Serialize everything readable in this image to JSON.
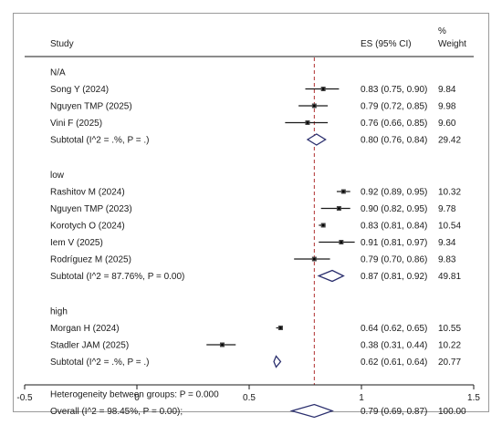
{
  "chart_data": {
    "type": "forest",
    "headers": {
      "study": "Study",
      "es": "ES (95% CI)",
      "weight_top": "%",
      "weight": "Weight"
    },
    "reference_line": 0.79,
    "xlim": [
      -0.5,
      1.5
    ],
    "xticks": [
      -0.5,
      0,
      0.5,
      1,
      1.5
    ],
    "xtick_labels": [
      "-0.5",
      "0",
      "0.5",
      "1",
      "1.5"
    ],
    "groups": [
      {
        "name": "N/A",
        "studies": [
          {
            "label": "Song Y (2024)",
            "es": 0.83,
            "lo": 0.75,
            "hi": 0.9,
            "ci_text": "0.83 (0.75, 0.90)",
            "weight": "9.84"
          },
          {
            "label": "Nguyen TMP (2025)",
            "es": 0.79,
            "lo": 0.72,
            "hi": 0.85,
            "ci_text": "0.79 (0.72, 0.85)",
            "weight": "9.98"
          },
          {
            "label": "Vini F (2025)",
            "es": 0.76,
            "lo": 0.66,
            "hi": 0.85,
            "ci_text": "0.76 (0.66, 0.85)",
            "weight": "9.60"
          }
        ],
        "subtotal": {
          "label": "Subtotal  (I^2 = .%,  P = .)",
          "es": 0.8,
          "lo": 0.76,
          "hi": 0.84,
          "ci_text": "0.80 (0.76, 0.84)",
          "weight": "29.42"
        }
      },
      {
        "name": "low",
        "studies": [
          {
            "label": "Rashitov M (2024)",
            "es": 0.92,
            "lo": 0.89,
            "hi": 0.95,
            "ci_text": "0.92 (0.89, 0.95)",
            "weight": "10.32"
          },
          {
            "label": "Nguyen TMP (2023)",
            "es": 0.9,
            "lo": 0.82,
            "hi": 0.95,
            "ci_text": "0.90 (0.82, 0.95)",
            "weight": "9.78"
          },
          {
            "label": "Korotych O (2024)",
            "es": 0.83,
            "lo": 0.81,
            "hi": 0.84,
            "ci_text": "0.83 (0.81, 0.84)",
            "weight": "10.54"
          },
          {
            "label": "Iem V (2025)",
            "es": 0.91,
            "lo": 0.81,
            "hi": 0.97,
            "ci_text": "0.91 (0.81, 0.97)",
            "weight": "9.34"
          },
          {
            "label": "Rodríguez M (2025)",
            "es": 0.79,
            "lo": 0.7,
            "hi": 0.86,
            "ci_text": "0.79 (0.70, 0.86)",
            "weight": "9.83"
          }
        ],
        "subtotal": {
          "label": "Subtotal  (I^2 = 87.76%,  P = 0.00)",
          "es": 0.87,
          "lo": 0.81,
          "hi": 0.92,
          "ci_text": "0.87 (0.81, 0.92)",
          "weight": "49.81"
        }
      },
      {
        "name": "high",
        "studies": [
          {
            "label": "Morgan H (2024)",
            "es": 0.64,
            "lo": 0.62,
            "hi": 0.65,
            "ci_text": "0.64 (0.62, 0.65)",
            "weight": "10.55"
          },
          {
            "label": "Stadler JAM (2025)",
            "es": 0.38,
            "lo": 0.31,
            "hi": 0.44,
            "ci_text": "0.38 (0.31, 0.44)",
            "weight": "10.22"
          }
        ],
        "subtotal": {
          "label": "Subtotal  (I^2 = .%,  P = .)",
          "es": 0.62,
          "lo": 0.61,
          "hi": 0.64,
          "ci_text": "0.62 (0.61, 0.64)",
          "weight": "20.77"
        }
      }
    ],
    "heterogeneity": "Heterogeneity between groups:  P = 0.000",
    "overall": {
      "label": "Overall  (I^2 = 98.45%,  P = 0.00);",
      "es": 0.79,
      "lo": 0.69,
      "hi": 0.87,
      "ci_text": "0.79 (0.69, 0.87)",
      "weight": "100.00"
    },
    "colors": {
      "diamond": "#2b2f6e",
      "reference": "#b03030",
      "ink": "#1a1a1a"
    }
  }
}
